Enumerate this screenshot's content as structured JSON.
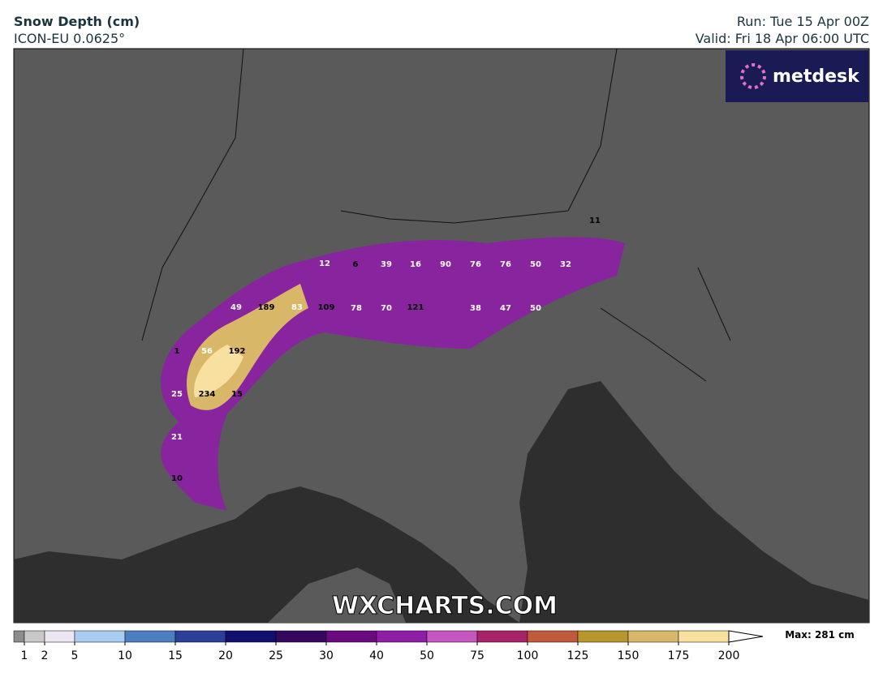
{
  "header": {
    "title": "Snow Depth (cm)",
    "model": "ICON-EU 0.0625°",
    "run": "Run: Tue 15 Apr 00Z",
    "valid": "Valid: Fri 18 Apr 06:00 UTC"
  },
  "logo": "metdesk",
  "watermark": "WXCHARTS.COM",
  "map_labels": [
    11,
    12,
    6,
    39,
    16,
    90,
    76,
    76,
    50,
    32,
    49,
    189,
    83,
    109,
    78,
    70,
    121,
    38,
    47,
    50,
    1,
    56,
    192,
    25,
    234,
    15,
    21,
    10
  ],
  "legend": {
    "ticks": [
      1,
      2,
      5,
      10,
      15,
      20,
      25,
      30,
      40,
      50,
      75,
      100,
      125,
      150,
      175,
      200
    ],
    "under_color": "#8c8c8c",
    "colors": [
      "#c8c8c8",
      "#ece6f2",
      "#a9cdf0",
      "#4b7fc0",
      "#2c3f98",
      "#12106e",
      "#35085e",
      "#6a0a7e",
      "#8e1ea6",
      "#c656c2",
      "#a82468",
      "#c05a3c",
      "#b8962e",
      "#d8b868",
      "#f8e0a0"
    ],
    "over_color": "#ffffff",
    "max": "Max: 281 cm"
  }
}
